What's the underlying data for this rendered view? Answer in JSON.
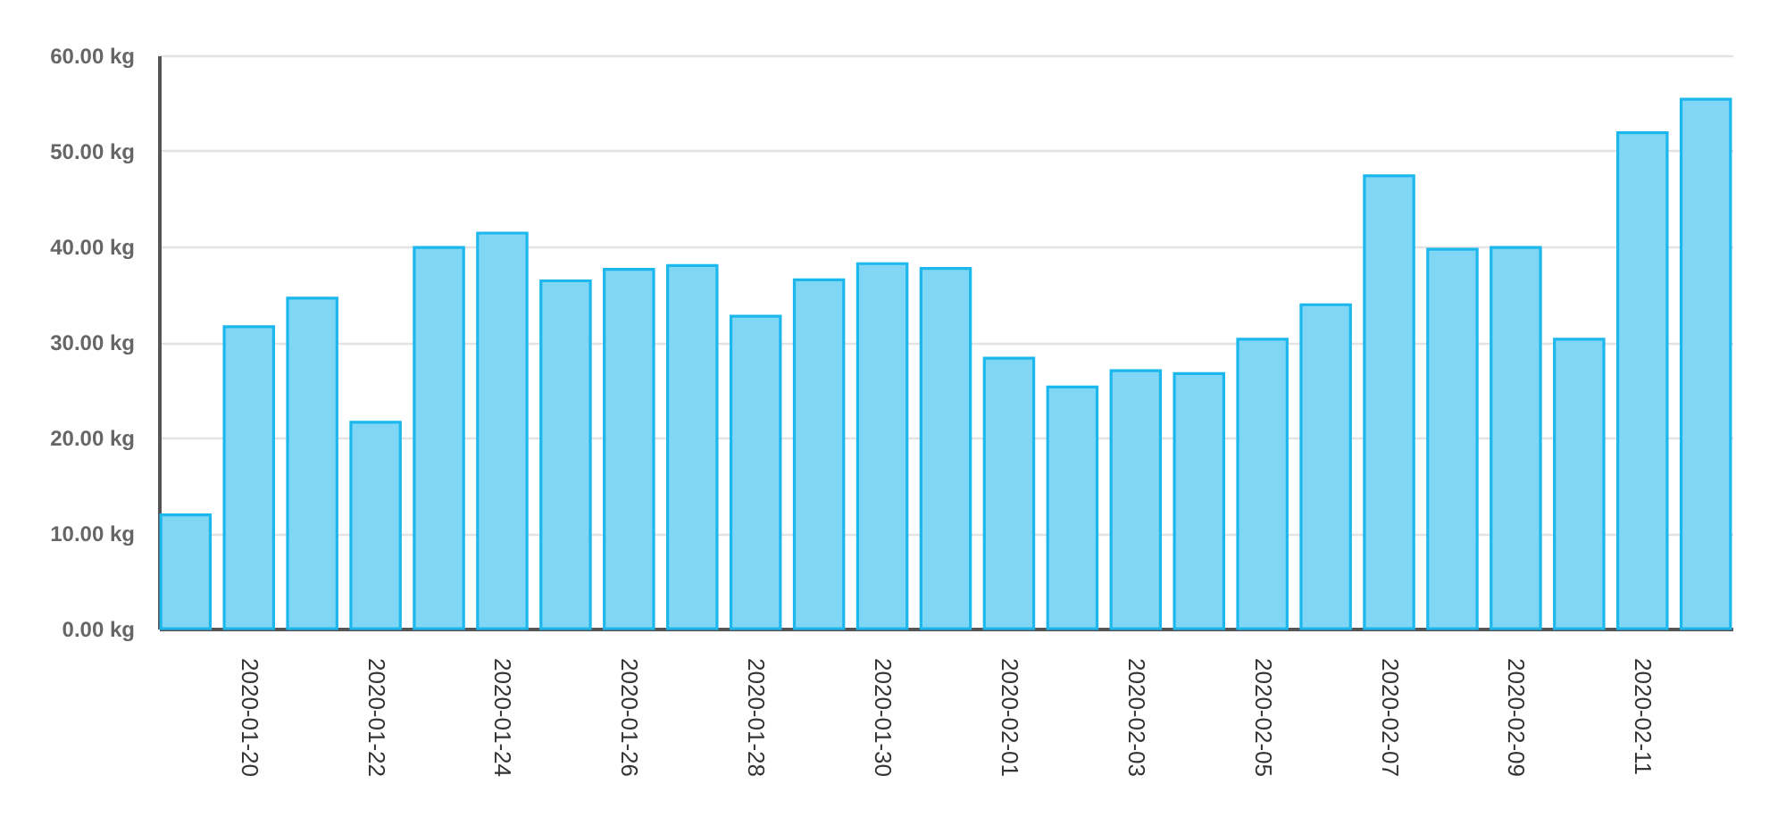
{
  "chart_data": {
    "type": "bar",
    "categories": [
      null,
      "2020-01-20",
      null,
      "2020-01-22",
      null,
      "2020-01-24",
      null,
      "2020-01-26",
      null,
      "2020-01-28",
      null,
      "2020-01-30",
      null,
      "2020-02-01",
      null,
      "2020-02-03",
      null,
      "2020-02-05",
      null,
      "2020-02-07",
      null,
      "2020-02-09",
      null,
      "2020-02-11",
      null
    ],
    "values": [
      11.9,
      31.6,
      34.6,
      21.6,
      39.9,
      41.4,
      36.4,
      37.6,
      38.0,
      32.7,
      36.5,
      38.2,
      37.7,
      28.3,
      25.3,
      27.0,
      26.7,
      30.3,
      33.9,
      47.4,
      39.7,
      39.9,
      30.3,
      51.9,
      55.4
    ],
    "color": "#7fd6f5",
    "ylim": [
      0,
      60
    ],
    "yticks": [
      {
        "value": 0,
        "label": "0.00 kg"
      },
      {
        "value": 10,
        "label": "10.00 kg"
      },
      {
        "value": 20,
        "label": "20.00 kg"
      },
      {
        "value": 30,
        "label": "30.00 kg"
      },
      {
        "value": 40,
        "label": "40.00 kg"
      },
      {
        "value": 50,
        "label": "50.00 kg"
      },
      {
        "value": 60,
        "label": "60.00 kg"
      }
    ],
    "grid": "y"
  }
}
